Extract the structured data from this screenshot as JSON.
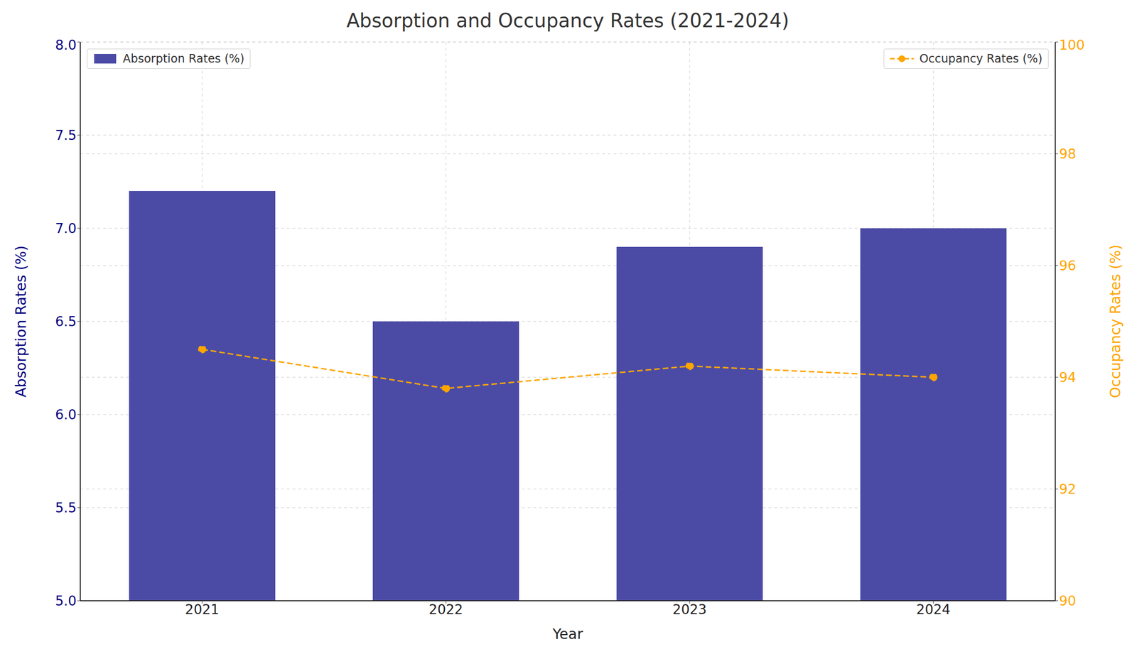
{
  "chart_data": {
    "type": "bar",
    "title": "Absorption and Occupancy Rates (2021-2024)",
    "x_label": "Year",
    "y_label": "Absorption Rates (%)",
    "y2_label": "Occupancy Rates (%)",
    "categories": [
      "2021",
      "2022",
      "2023",
      "2024"
    ],
    "series": [
      {
        "name": "Absorption Rates (%)",
        "type": "bar",
        "color": "#4b4ba6",
        "values": [
          7.2,
          6.5,
          6.9,
          7.0
        ]
      },
      {
        "name": "Occupancy Rates (%)",
        "type": "line",
        "axis": "y2",
        "color": "#ffa500",
        "marker": "circle",
        "line_style": "dashed",
        "values": [
          94.5,
          93.8,
          94.2,
          94.0
        ]
      }
    ],
    "ylim": [
      5,
      8
    ],
    "yticks": [
      {
        "value": 5,
        "label": "5.0"
      },
      {
        "value": 5.5,
        "label": "5.5"
      },
      {
        "value": 6,
        "label": "6.0"
      },
      {
        "value": 6.5,
        "label": "6.5"
      },
      {
        "value": 7,
        "label": "7.0"
      },
      {
        "value": 7.5,
        "label": "7.5"
      },
      {
        "value": 8,
        "label": "8.0"
      }
    ],
    "y2lim": [
      90,
      100
    ],
    "y2ticks": [
      90,
      92,
      94,
      96,
      98,
      100
    ],
    "grid": true,
    "legend": "top"
  }
}
